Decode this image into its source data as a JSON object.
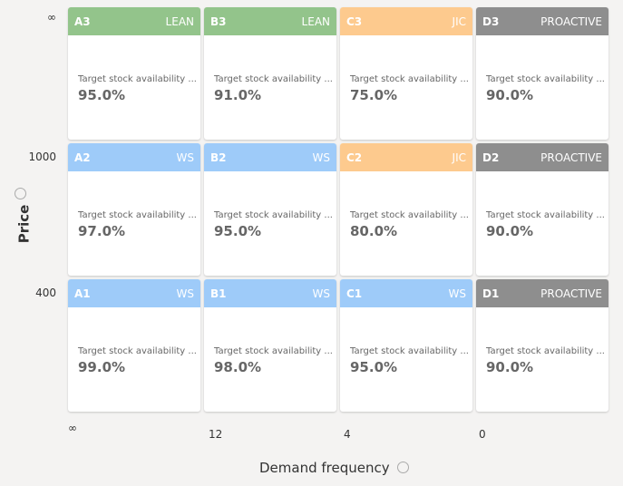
{
  "y_axis": {
    "title": "Price",
    "labels": [
      "∞",
      "1000",
      "400"
    ]
  },
  "x_axis": {
    "title": "Demand frequency",
    "labels": [
      "∞",
      "12",
      "4",
      "0"
    ]
  },
  "cards": [
    [
      {
        "code": "A3",
        "tag": "LEAN",
        "color": "#93c48b",
        "label": "Target stock availability ...",
        "value": "95.0%"
      },
      {
        "code": "B3",
        "tag": "LEAN",
        "color": "#93c48b",
        "label": "Target stock availability ...",
        "value": "91.0%"
      },
      {
        "code": "C3",
        "tag": "JIC",
        "color": "#fdca8e",
        "label": "Target stock availability ...",
        "value": "75.0%"
      },
      {
        "code": "D3",
        "tag": "PROACTIVE",
        "color": "#8e8e8e",
        "label": "Target stock availability ...",
        "value": "90.0%"
      }
    ],
    [
      {
        "code": "A2",
        "tag": "WS",
        "color": "#9ecbf9",
        "label": "Target stock availability ...",
        "value": "97.0%"
      },
      {
        "code": "B2",
        "tag": "WS",
        "color": "#9ecbf9",
        "label": "Target stock availability ...",
        "value": "95.0%"
      },
      {
        "code": "C2",
        "tag": "JIC",
        "color": "#fdca8e",
        "label": "Target stock availability ...",
        "value": "80.0%"
      },
      {
        "code": "D2",
        "tag": "PROACTIVE",
        "color": "#8e8e8e",
        "label": "Target stock availability ...",
        "value": "90.0%"
      }
    ],
    [
      {
        "code": "A1",
        "tag": "WS",
        "color": "#9ecbf9",
        "label": "Target stock availability ...",
        "value": "99.0%"
      },
      {
        "code": "B1",
        "tag": "WS",
        "color": "#9ecbf9",
        "label": "Target stock availability ...",
        "value": "98.0%"
      },
      {
        "code": "C1",
        "tag": "WS",
        "color": "#9ecbf9",
        "label": "Target stock availability ...",
        "value": "95.0%"
      },
      {
        "code": "D1",
        "tag": "PROACTIVE",
        "color": "#8e8e8e",
        "label": "Target stock availability ...",
        "value": "90.0%"
      }
    ]
  ]
}
